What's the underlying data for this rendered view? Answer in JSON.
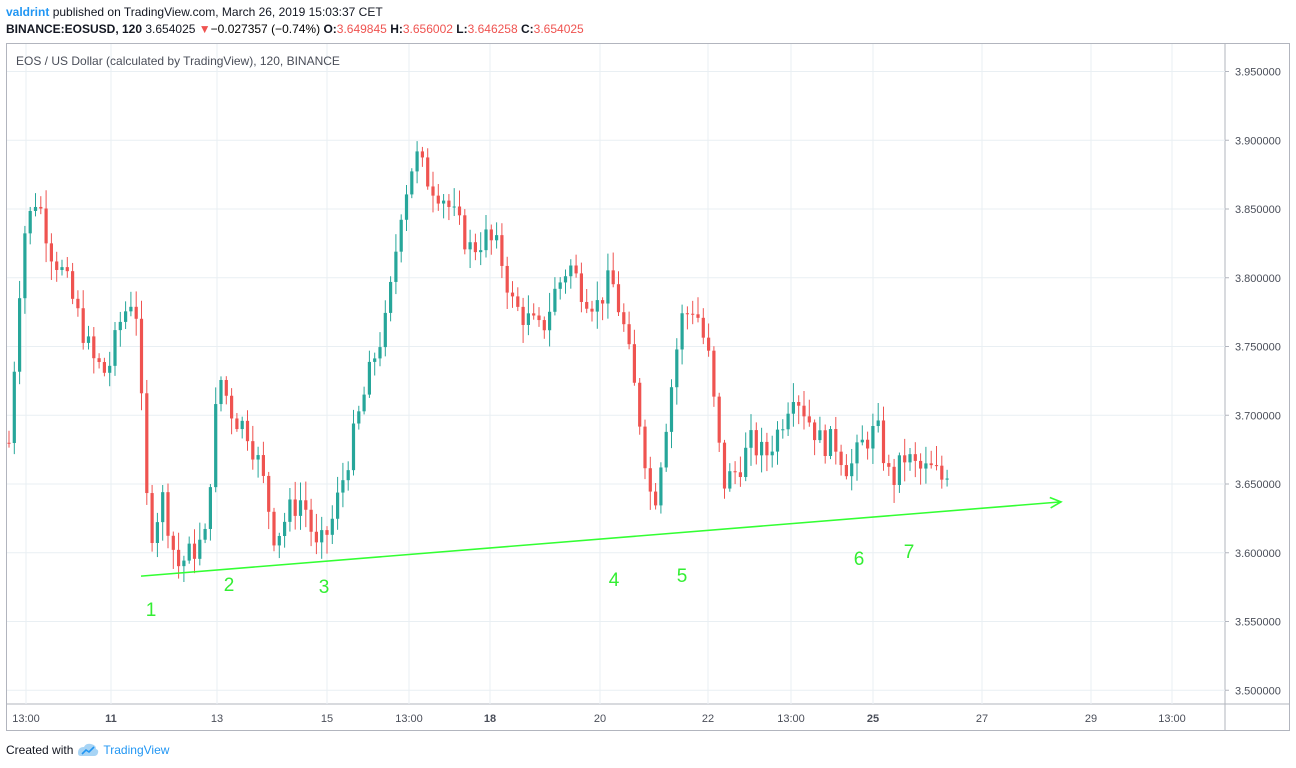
{
  "header": {
    "user": "valdrint",
    "published": "published on TradingView.com, March 26, 2019 15:03:37 CET",
    "symbol": "BINANCE:EOSUSD, 120",
    "last": "3.654025",
    "change": "−0.027357 (−0.74%)",
    "o_label": "O:",
    "o_val": "3.649845",
    "h_label": "H:",
    "h_val": "3.656002",
    "l_label": "L:",
    "l_val": "3.646258",
    "c_label": "C:",
    "c_val": "3.654025"
  },
  "legend": "EOS / US Dollar (calculated by TradingView), 120, BINANCE",
  "footer": {
    "created": "Created with",
    "brand": "TradingView"
  },
  "colors": {
    "up": "#26a69a",
    "down": "#ef5350",
    "trend": "#33ff33",
    "grid": "#e9eff3",
    "label": "#33ee33"
  },
  "chart_data": {
    "type": "candlestick",
    "y_ticks": [
      "3.950000",
      "3.900000",
      "3.850000",
      "3.800000",
      "3.750000",
      "3.700000",
      "3.650000",
      "3.600000",
      "3.550000",
      "3.500000"
    ],
    "ylim": [
      3.49,
      3.97
    ],
    "x_ticks": [
      "13:00",
      "11",
      "13",
      "15",
      "13:00",
      "18",
      "20",
      "22",
      "13:00",
      "25",
      "27",
      "29",
      "13:00"
    ],
    "trendline": {
      "start": 3.583,
      "end": 3.637,
      "arrow": true
    },
    "touch_points": [
      {
        "label": "1",
        "price": 3.583
      },
      {
        "label": "2",
        "price": 3.586
      },
      {
        "label": "3",
        "price": 3.59
      },
      {
        "label": "4",
        "price": 3.612
      },
      {
        "label": "5",
        "price": 3.617
      },
      {
        "label": "6",
        "price": 3.624
      },
      {
        "label": "7",
        "price": 3.628
      }
    ],
    "path": [
      3.68,
      3.83,
      3.86,
      3.82,
      3.8,
      3.77,
      3.74,
      3.73,
      3.77,
      3.79,
      3.61,
      3.64,
      3.59,
      3.6,
      3.61,
      3.73,
      3.7,
      3.69,
      3.66,
      3.61,
      3.63,
      3.64,
      3.6,
      3.62,
      3.66,
      3.7,
      3.74,
      3.77,
      3.85,
      3.89,
      3.87,
      3.86,
      3.84,
      3.82,
      3.83,
      3.82,
      3.78,
      3.77,
      3.76,
      3.79,
      3.81,
      3.79,
      3.78,
      3.8,
      3.76,
      3.7,
      3.63,
      3.7,
      3.77,
      3.78,
      3.74,
      3.65,
      3.66,
      3.68,
      3.67,
      3.69,
      3.72,
      3.7,
      3.68,
      3.68,
      3.66,
      3.68,
      3.69,
      3.65,
      3.67,
      3.66,
      3.66,
      3.65
    ],
    "last_price": 3.654
  }
}
